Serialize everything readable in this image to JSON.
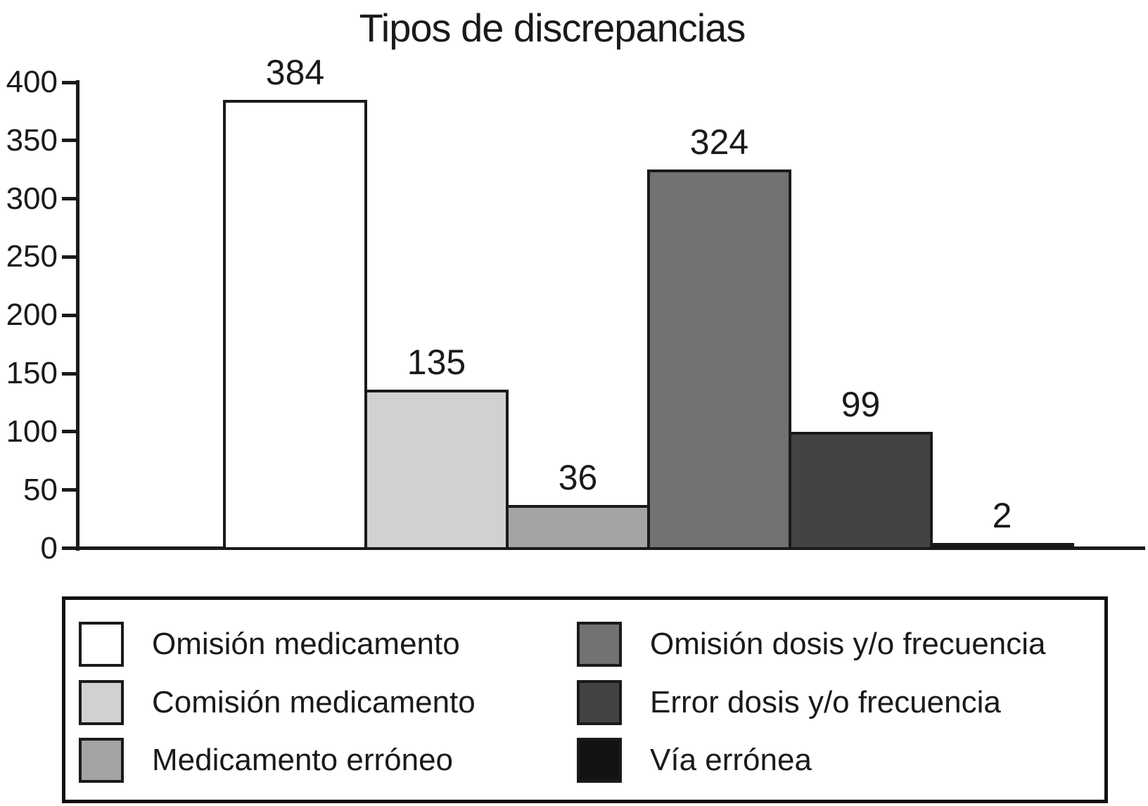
{
  "chart_data": {
    "type": "bar",
    "title": "Tipos de discrepancias",
    "categories": [
      "Omisión medicamento",
      "Comisión medicamento",
      "Medicamento erróneo",
      "Omisión dosis y/o frecuencia",
      "Error dosis y/o frecuencia",
      "Vía errónea"
    ],
    "values": [
      384,
      135,
      36,
      324,
      99,
      2
    ],
    "bar_colors": [
      "#ffffff",
      "#d1d1d1",
      "#a3a3a5",
      "#727274",
      "#434345",
      "#131313"
    ],
    "bar_border_color": "#1a1a1a",
    "xlabel": "",
    "ylabel": "",
    "yticks": [
      0,
      50,
      100,
      150,
      200,
      250,
      300,
      350,
      400
    ],
    "ylim": [
      0,
      400
    ],
    "grid": false,
    "legend_position": "bottom-box",
    "legend_columns": 2
  }
}
